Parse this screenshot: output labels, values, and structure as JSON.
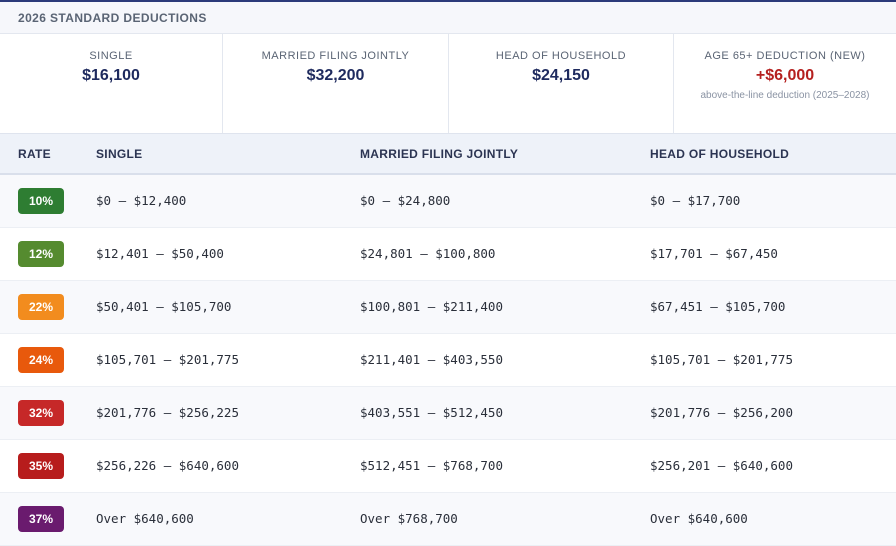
{
  "section_title": "2026 STANDARD DEDUCTIONS",
  "cards": [
    {
      "label": "SINGLE",
      "value": "$16,100",
      "note": ""
    },
    {
      "label": "MARRIED FILING JOINTLY",
      "value": "$32,200",
      "note": ""
    },
    {
      "label": "HEAD OF HOUSEHOLD",
      "value": "$24,150",
      "note": ""
    },
    {
      "label": "AGE 65+ DEDUCTION (NEW)",
      "value": "+$6,000",
      "note": "above-the-line deduction (2025–2028)"
    }
  ],
  "table": {
    "headers": [
      "RATE",
      "SINGLE",
      "MARRIED FILING JOINTLY",
      "HEAD OF HOUSEHOLD"
    ],
    "rows": [
      {
        "rate": "10%",
        "color": "#2e7d32",
        "single": "$0 – $12,400",
        "mfj": "$0 – $24,800",
        "hoh": "$0 – $17,700"
      },
      {
        "rate": "12%",
        "color": "#558b2f",
        "single": "$12,401 – $50,400",
        "mfj": "$24,801 – $100,800",
        "hoh": "$17,701 – $67,450"
      },
      {
        "rate": "22%",
        "color": "#f28c1e",
        "single": "$50,401 – $105,700",
        "mfj": "$100,801 – $211,400",
        "hoh": "$67,451 – $105,700"
      },
      {
        "rate": "24%",
        "color": "#e8590c",
        "single": "$105,701 – $201,775",
        "mfj": "$211,401 – $403,550",
        "hoh": "$105,701 – $201,775"
      },
      {
        "rate": "32%",
        "color": "#c62828",
        "single": "$201,776 – $256,225",
        "mfj": "$403,551 – $512,450",
        "hoh": "$201,776 – $256,200"
      },
      {
        "rate": "35%",
        "color": "#b71c1c",
        "single": "$256,226 – $640,600",
        "mfj": "$512,451 – $768,700",
        "hoh": "$256,201 – $640,600"
      },
      {
        "rate": "37%",
        "color": "#6a1b6e",
        "single": "Over $640,600",
        "mfj": "Over $768,700",
        "hoh": "Over $640,600"
      }
    ]
  }
}
